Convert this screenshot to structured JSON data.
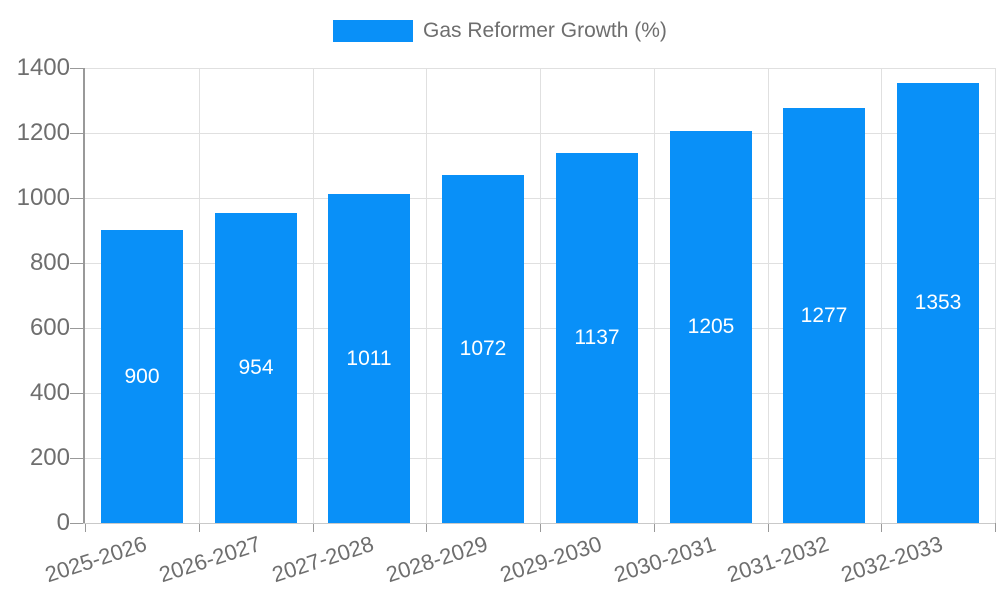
{
  "legend": {
    "label": "Gas Reformer Growth (%)"
  },
  "colors": {
    "bar": "#0990f8",
    "axis_text": "#6e6e6e",
    "value_text": "#ffffff",
    "gridline": "#e0e0e0",
    "axis_line": "#999999",
    "x_axis_line": "#c9c9c9",
    "background": "#ffffff"
  },
  "chart_data": {
    "type": "bar",
    "title": "Gas Reformer Growth (%)",
    "categories": [
      "2025-2026",
      "2026-2027",
      "2027-2028",
      "2028-2029",
      "2029-2030",
      "2030-2031",
      "2031-2032",
      "2032-2033"
    ],
    "values": [
      900,
      954,
      1011,
      1072,
      1137,
      1205,
      1277,
      1353
    ],
    "value_labels": [
      "900",
      "954",
      "1011",
      "1072",
      "1137",
      "1205",
      "1277",
      "1353"
    ],
    "y_ticks": [
      0,
      200,
      400,
      600,
      800,
      1000,
      1200,
      1400
    ],
    "ylim": [
      0,
      1400
    ],
    "xlabel": "",
    "ylabel": "",
    "legend_position": "top-center",
    "grid": true,
    "value_label_position": "inside-center",
    "x_label_rotation_deg": -18
  }
}
